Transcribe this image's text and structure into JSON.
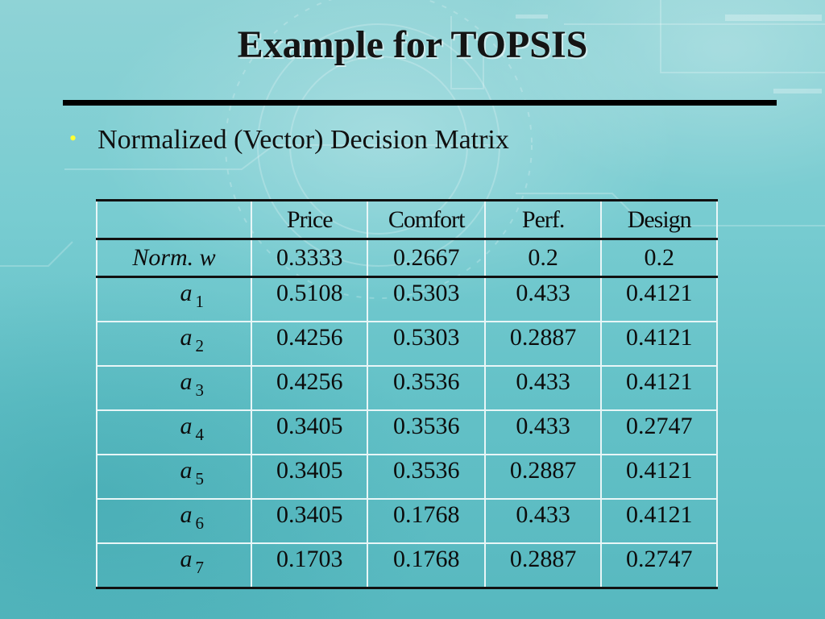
{
  "slide": {
    "title": "Example for TOPSIS",
    "bullet": "Normalized (Vector) Decision Matrix"
  },
  "colors": {
    "background": "#78ccd1",
    "bullet_dot": "#ffff33",
    "rule": "#000000"
  },
  "table": {
    "headers": [
      "",
      "Price",
      "Comfort",
      "Perf.",
      "Design"
    ],
    "weights": {
      "label": "Norm. w",
      "values": [
        "0.3333",
        "0.2667",
        "0.2",
        "0.2"
      ]
    },
    "rows": [
      {
        "label": "a",
        "sub": "1",
        "values": [
          "0.5108",
          "0.5303",
          "0.433",
          "0.4121"
        ]
      },
      {
        "label": "a",
        "sub": "2",
        "values": [
          "0.4256",
          "0.5303",
          "0.2887",
          "0.4121"
        ]
      },
      {
        "label": "a",
        "sub": "3",
        "values": [
          "0.4256",
          "0.3536",
          "0.433",
          "0.4121"
        ]
      },
      {
        "label": "a",
        "sub": "4",
        "values": [
          "0.3405",
          "0.3536",
          "0.433",
          "0.2747"
        ]
      },
      {
        "label": "a",
        "sub": "5",
        "values": [
          "0.3405",
          "0.3536",
          "0.2887",
          "0.4121"
        ]
      },
      {
        "label": "a",
        "sub": "6",
        "values": [
          "0.3405",
          "0.1768",
          "0.433",
          "0.4121"
        ]
      },
      {
        "label": "a",
        "sub": "7",
        "values": [
          "0.1703",
          "0.1768",
          "0.2887",
          "0.2747"
        ]
      }
    ]
  }
}
